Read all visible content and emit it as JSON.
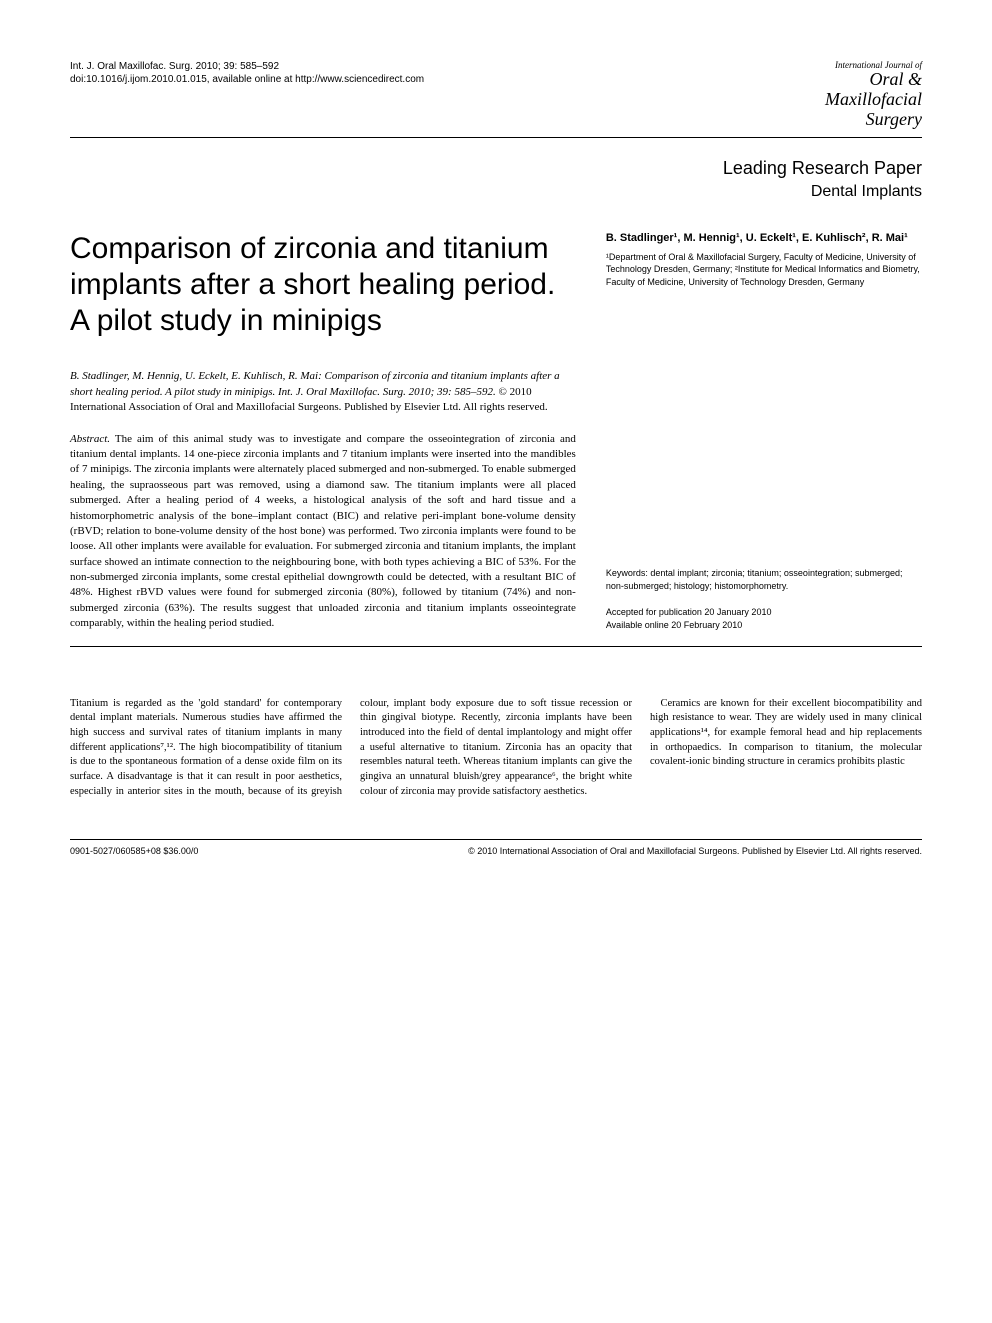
{
  "header": {
    "citation_line1": "Int. J. Oral Maxillofac. Surg. 2010; 39: 585–592",
    "citation_line2": "doi:10.1016/j.ijom.2010.01.015, available online at http://www.sciencedirect.com",
    "journal_small": "International Journal of",
    "journal_line1": "Oral &",
    "journal_line2": "Maxillofacial",
    "journal_line3": "Surgery"
  },
  "section": {
    "line1": "Leading Research Paper",
    "line2": "Dental Implants"
  },
  "title": "Comparison of zirconia and titanium implants after a short healing period. A pilot study in minipigs",
  "authors": {
    "names": "B. Stadlinger¹, M. Hennig¹, U. Eckelt¹, E. Kuhlisch², R. Mai¹",
    "affiliations": "¹Department of Oral & Maxillofacial Surgery, Faculty of Medicine, University of Technology Dresden, Germany; ²Institute for Medical Informatics and Biometry, Faculty of Medicine, University of Technology Dresden, Germany"
  },
  "citation_para": {
    "italic": "B. Stadlinger, M. Hennig, U. Eckelt, E. Kuhlisch, R. Mai: Comparison of zirconia and titanium implants after a short healing period. A pilot study in minipigs. Int. J. Oral Maxillofac. Surg. 2010; 39: 585–592.",
    "rest": " © 2010 International Association of Oral and Maxillofacial Surgeons. Published by Elsevier Ltd. All rights reserved."
  },
  "abstract": {
    "label": "Abstract.",
    "text": " The aim of this animal study was to investigate and compare the osseointegration of zirconia and titanium dental implants. 14 one-piece zirconia implants and 7 titanium implants were inserted into the mandibles of 7 minipigs. The zirconia implants were alternately placed submerged and non-submerged. To enable submerged healing, the supraosseous part was removed, using a diamond saw. The titanium implants were all placed submerged. After a healing period of 4 weeks, a histological analysis of the soft and hard tissue and a histomorphometric analysis of the bone–implant contact (BIC) and relative peri-implant bone-volume density (rBVD; relation to bone-volume density of the host bone) was performed. Two zirconia implants were found to be loose. All other implants were available for evaluation. For submerged zirconia and titanium implants, the implant surface showed an intimate connection to the neighbouring bone, with both types achieving a BIC of 53%. For the non-submerged zirconia implants, some crestal epithelial downgrowth could be detected, with a resultant BIC of 48%. Highest rBVD values were found for submerged zirconia (80%), followed by titanium (74%) and non-submerged zirconia (63%). The results suggest that unloaded zirconia and titanium implants osseointegrate comparably, within the healing period studied."
  },
  "meta": {
    "keywords": "Keywords: dental implant; zirconia; titanium; osseointegration; submerged; non-submerged; histology; histomorphometry.",
    "accepted": "Accepted for publication 20 January 2010",
    "online": "Available online 20 February 2010"
  },
  "body": {
    "p1": "Titanium is regarded as the 'gold standard' for contemporary dental implant materials. Numerous studies have affirmed the high success and survival rates of titanium implants in many different applications⁷,¹². The high biocompatibility of titanium is due to the spontaneous formation of a dense oxide film on its surface. A disadvantage is that it can result in poor aesthetics, especially in anterior sites in the mouth, because of its greyish colour, implant body exposure due to soft tissue recession or thin gingival biotype. Recently, zirconia implants have been introduced into the field of dental implantology and might offer a useful alternative to titanium. Zirconia has an opacity that resembles natural teeth. Whereas titanium implants can give the gingiva an unnatural bluish/grey appearance⁶, the bright white colour of zirconia may provide satisfactory aesthetics.",
    "p2": "Ceramics are known for their excellent biocompatibility and high resistance to wear. They are widely used in many clinical applications¹⁴, for example femoral head and hip replacements in orthopaedics. In comparison to titanium, the molecular covalent-ionic binding structure in ceramics prohibits plastic"
  },
  "footer": {
    "left": "0901-5027/060585+08 $36.00/0",
    "right": "© 2010 International Association of Oral and Maxillofacial Surgeons. Published by Elsevier Ltd. All rights reserved."
  }
}
